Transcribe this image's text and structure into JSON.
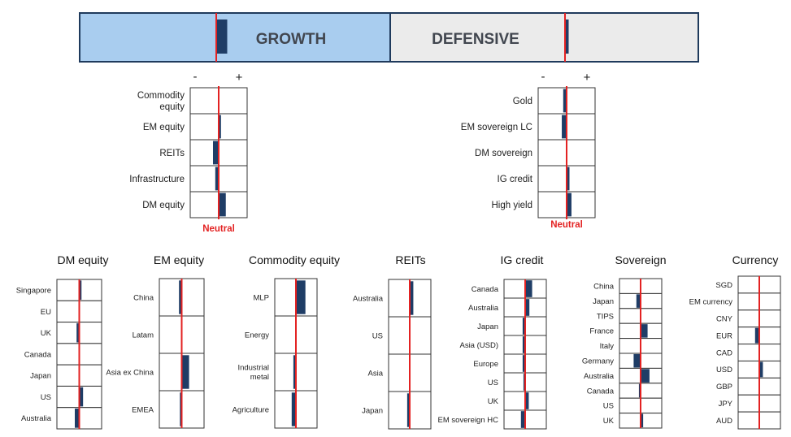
{
  "colors": {
    "growth_fill": "#a9cdef",
    "defensive_fill": "#ebebeb",
    "frame": "#1f3a5c",
    "bar": "#1f3d66",
    "neutral": "#e32222",
    "neutral_text": "#e32222",
    "label_text": "#222222",
    "banner_text": "#41464f"
  },
  "banner": {
    "growth_label": "GROWTH",
    "defensive_label": "DEFENSIVE",
    "growth_tilt": 0.3,
    "defensive_tilt": 0.1
  },
  "scale": {
    "minus": "-",
    "plus": "+",
    "neutral": "Neutral",
    "range": [
      -1,
      1
    ]
  },
  "chart_data": [
    {
      "type": "bar",
      "orientation": "horizontal-diverging",
      "title": "",
      "group": "Growth",
      "categories": [
        "Commodity equity",
        "EM equity",
        "REITs",
        "Infrastructure",
        "DM equity"
      ],
      "values": [
        0,
        0.08,
        -0.2,
        -0.12,
        0.25
      ],
      "xlim": [
        -1,
        1
      ]
    },
    {
      "type": "bar",
      "orientation": "horizontal-diverging",
      "title": "",
      "group": "Defensive",
      "categories": [
        "Gold",
        "EM sovereign LC",
        "DM sovereign",
        "IG credit",
        "High yield"
      ],
      "values": [
        -0.12,
        -0.17,
        0,
        0.1,
        0.17
      ],
      "xlim": [
        -1,
        1
      ]
    },
    {
      "type": "bar",
      "orientation": "horizontal-diverging",
      "title": "DM equity",
      "categories": [
        "Singapore",
        "EU",
        "UK",
        "Canada",
        "Japan",
        "US",
        "Australia"
      ],
      "values": [
        0.1,
        0,
        -0.12,
        0,
        0,
        0.17,
        -0.2
      ],
      "xlim": [
        -1,
        1
      ]
    },
    {
      "type": "bar",
      "orientation": "horizontal-diverging",
      "title": "EM equity",
      "categories": [
        "China",
        "Latam",
        "Asia ex China",
        "EMEA"
      ],
      "values": [
        -0.12,
        0,
        0.33,
        -0.08
      ],
      "xlim": [
        -1,
        1
      ]
    },
    {
      "type": "bar",
      "orientation": "horizontal-diverging",
      "title": "Commodity equity",
      "categories": [
        "MLP",
        "Energy",
        "Industrial metal",
        "Agriculture"
      ],
      "values": [
        0.45,
        0,
        -0.12,
        -0.2
      ],
      "xlim": [
        -1,
        1
      ]
    },
    {
      "type": "bar",
      "orientation": "horizontal-diverging",
      "title": "REITs",
      "categories": [
        "Australia",
        "US",
        "Asia",
        "Japan"
      ],
      "values": [
        0.17,
        0,
        0,
        -0.12
      ],
      "xlim": [
        -1,
        1
      ]
    },
    {
      "type": "bar",
      "orientation": "horizontal-diverging",
      "title": "IG credit",
      "categories": [
        "Canada",
        "Australia",
        "Japan",
        "Asia (USD)",
        "Europe",
        "US",
        "UK",
        "EM sovereign HC"
      ],
      "values": [
        0.33,
        0.2,
        -0.12,
        -0.12,
        -0.12,
        -0.08,
        0.17,
        -0.2
      ],
      "xlim": [
        -1,
        1
      ]
    },
    {
      "type": "bar",
      "orientation": "horizontal-diverging",
      "title": "Sovereign",
      "categories": [
        "China",
        "Japan",
        "TIPS",
        "France",
        "Italy",
        "Germany",
        "Australia",
        "Canada",
        "US",
        "UK"
      ],
      "values": [
        0,
        -0.2,
        0,
        0.33,
        0,
        -0.33,
        0.42,
        -0.08,
        0,
        0.12
      ],
      "xlim": [
        -1,
        1
      ]
    },
    {
      "type": "bar",
      "orientation": "horizontal-diverging",
      "title": "Currency",
      "categories": [
        "SGD",
        "EM currency",
        "CNY",
        "EUR",
        "CAD",
        "USD",
        "GBP",
        "JPY",
        "AUD"
      ],
      "values": [
        0,
        0,
        0,
        -0.2,
        0,
        0.17,
        0,
        0,
        0
      ],
      "xlim": [
        -1,
        1
      ]
    }
  ]
}
